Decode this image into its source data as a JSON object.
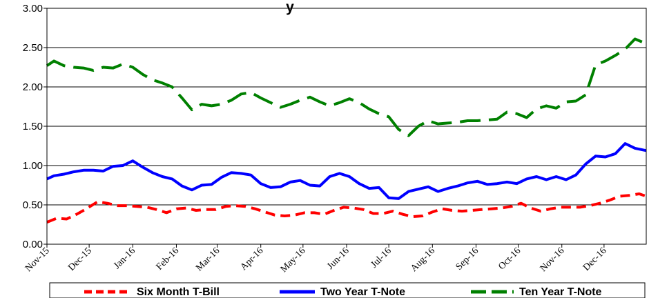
{
  "chart_data": {
    "type": "line",
    "title": "y",
    "ylim": [
      0,
      3
    ],
    "yticks": [
      "0.00",
      "0.50",
      "1.00",
      "1.50",
      "2.00",
      "2.50",
      "3.00"
    ],
    "xlim": [
      "2015-11-01",
      "2016-12-31"
    ],
    "xticks": [
      {
        "date": "2015-11-01",
        "label": "Nov-15"
      },
      {
        "date": "2015-12-01",
        "label": "Dec-15"
      },
      {
        "date": "2016-01-01",
        "label": "Jan-16"
      },
      {
        "date": "2016-02-01",
        "label": "Feb-16"
      },
      {
        "date": "2016-03-01",
        "label": "Mar-16"
      },
      {
        "date": "2016-04-01",
        "label": "Apr-16"
      },
      {
        "date": "2016-05-01",
        "label": "May-16"
      },
      {
        "date": "2016-06-01",
        "label": "Jun-16"
      },
      {
        "date": "2016-07-01",
        "label": "Jul-16"
      },
      {
        "date": "2016-08-01",
        "label": "Aug-16"
      },
      {
        "date": "2016-09-01",
        "label": "Sep-16"
      },
      {
        "date": "2016-10-01",
        "label": "Oct-16"
      },
      {
        "date": "2016-11-01",
        "label": "Nov-16"
      },
      {
        "date": "2016-12-01",
        "label": "Dec-16"
      }
    ],
    "grid": true,
    "legend_position": "bottom",
    "series": [
      {
        "name": "Six Month T-Bill",
        "color": "#ff0000",
        "style": "dashed",
        "points": [
          [
            "2015-11-01",
            0.28
          ],
          [
            "2015-11-08",
            0.33
          ],
          [
            "2015-11-15",
            0.32
          ],
          [
            "2015-11-22",
            0.38
          ],
          [
            "2015-11-29",
            0.45
          ],
          [
            "2015-12-07",
            0.54
          ],
          [
            "2015-12-14",
            0.52
          ],
          [
            "2015-12-21",
            0.49
          ],
          [
            "2015-12-28",
            0.49
          ],
          [
            "2016-01-04",
            0.48
          ],
          [
            "2016-01-11",
            0.47
          ],
          [
            "2016-01-18",
            0.44
          ],
          [
            "2016-01-25",
            0.4
          ],
          [
            "2016-02-01",
            0.45
          ],
          [
            "2016-02-08",
            0.46
          ],
          [
            "2016-02-15",
            0.43
          ],
          [
            "2016-02-22",
            0.44
          ],
          [
            "2016-02-29",
            0.44
          ],
          [
            "2016-03-07",
            0.48
          ],
          [
            "2016-03-14",
            0.49
          ],
          [
            "2016-03-21",
            0.48
          ],
          [
            "2016-03-28",
            0.45
          ],
          [
            "2016-04-04",
            0.41
          ],
          [
            "2016-04-11",
            0.37
          ],
          [
            "2016-04-18",
            0.36
          ],
          [
            "2016-04-25",
            0.37
          ],
          [
            "2016-05-02",
            0.4
          ],
          [
            "2016-05-09",
            0.4
          ],
          [
            "2016-05-16",
            0.38
          ],
          [
            "2016-05-23",
            0.43
          ],
          [
            "2016-05-30",
            0.47
          ],
          [
            "2016-06-06",
            0.46
          ],
          [
            "2016-06-13",
            0.44
          ],
          [
            "2016-06-20",
            0.39
          ],
          [
            "2016-06-27",
            0.39
          ],
          [
            "2016-07-04",
            0.42
          ],
          [
            "2016-07-11",
            0.38
          ],
          [
            "2016-07-18",
            0.35
          ],
          [
            "2016-07-25",
            0.36
          ],
          [
            "2016-08-01",
            0.41
          ],
          [
            "2016-08-08",
            0.45
          ],
          [
            "2016-08-15",
            0.43
          ],
          [
            "2016-08-22",
            0.42
          ],
          [
            "2016-08-29",
            0.43
          ],
          [
            "2016-09-05",
            0.44
          ],
          [
            "2016-09-12",
            0.45
          ],
          [
            "2016-09-19",
            0.46
          ],
          [
            "2016-09-26",
            0.48
          ],
          [
            "2016-10-03",
            0.52
          ],
          [
            "2016-10-10",
            0.46
          ],
          [
            "2016-10-17",
            0.42
          ],
          [
            "2016-10-24",
            0.45
          ],
          [
            "2016-10-31",
            0.47
          ],
          [
            "2016-11-07",
            0.47
          ],
          [
            "2016-11-14",
            0.47
          ],
          [
            "2016-11-21",
            0.49
          ],
          [
            "2016-11-28",
            0.52
          ],
          [
            "2016-12-05",
            0.56
          ],
          [
            "2016-12-12",
            0.61
          ],
          [
            "2016-12-19",
            0.62
          ],
          [
            "2016-12-26",
            0.64
          ],
          [
            "2016-12-31",
            0.61
          ]
        ]
      },
      {
        "name": "Two Year T-Note",
        "color": "#0000ff",
        "style": "solid",
        "points": [
          [
            "2015-11-01",
            0.83
          ],
          [
            "2015-11-06",
            0.87
          ],
          [
            "2015-11-13",
            0.89
          ],
          [
            "2015-11-20",
            0.92
          ],
          [
            "2015-11-27",
            0.94
          ],
          [
            "2015-12-04",
            0.94
          ],
          [
            "2015-12-11",
            0.93
          ],
          [
            "2015-12-18",
            0.99
          ],
          [
            "2015-12-25",
            1.0
          ],
          [
            "2016-01-01",
            1.06
          ],
          [
            "2016-01-08",
            0.98
          ],
          [
            "2016-01-15",
            0.91
          ],
          [
            "2016-01-22",
            0.86
          ],
          [
            "2016-01-29",
            0.83
          ],
          [
            "2016-02-05",
            0.74
          ],
          [
            "2016-02-12",
            0.69
          ],
          [
            "2016-02-19",
            0.75
          ],
          [
            "2016-02-26",
            0.76
          ],
          [
            "2016-03-04",
            0.85
          ],
          [
            "2016-03-11",
            0.91
          ],
          [
            "2016-03-18",
            0.9
          ],
          [
            "2016-03-25",
            0.88
          ],
          [
            "2016-04-01",
            0.77
          ],
          [
            "2016-04-08",
            0.72
          ],
          [
            "2016-04-15",
            0.73
          ],
          [
            "2016-04-22",
            0.79
          ],
          [
            "2016-04-29",
            0.81
          ],
          [
            "2016-05-06",
            0.75
          ],
          [
            "2016-05-13",
            0.74
          ],
          [
            "2016-05-20",
            0.86
          ],
          [
            "2016-05-27",
            0.9
          ],
          [
            "2016-06-03",
            0.86
          ],
          [
            "2016-06-10",
            0.77
          ],
          [
            "2016-06-17",
            0.71
          ],
          [
            "2016-06-24",
            0.72
          ],
          [
            "2016-07-01",
            0.59
          ],
          [
            "2016-07-08",
            0.58
          ],
          [
            "2016-07-15",
            0.67
          ],
          [
            "2016-07-22",
            0.7
          ],
          [
            "2016-07-29",
            0.73
          ],
          [
            "2016-08-05",
            0.67
          ],
          [
            "2016-08-12",
            0.71
          ],
          [
            "2016-08-19",
            0.74
          ],
          [
            "2016-08-26",
            0.78
          ],
          [
            "2016-09-02",
            0.8
          ],
          [
            "2016-09-09",
            0.76
          ],
          [
            "2016-09-16",
            0.77
          ],
          [
            "2016-09-23",
            0.79
          ],
          [
            "2016-09-30",
            0.77
          ],
          [
            "2016-10-07",
            0.83
          ],
          [
            "2016-10-14",
            0.86
          ],
          [
            "2016-10-21",
            0.82
          ],
          [
            "2016-10-28",
            0.86
          ],
          [
            "2016-11-04",
            0.82
          ],
          [
            "2016-11-11",
            0.88
          ],
          [
            "2016-11-18",
            1.02
          ],
          [
            "2016-11-25",
            1.12
          ],
          [
            "2016-12-02",
            1.11
          ],
          [
            "2016-12-09",
            1.15
          ],
          [
            "2016-12-16",
            1.28
          ],
          [
            "2016-12-23",
            1.22
          ],
          [
            "2016-12-31",
            1.19
          ]
        ]
      },
      {
        "name": "Ten Year T-Note",
        "color": "#008000",
        "style": "dashed",
        "points": [
          [
            "2015-11-01",
            2.27
          ],
          [
            "2015-11-06",
            2.33
          ],
          [
            "2015-11-13",
            2.27
          ],
          [
            "2015-11-20",
            2.25
          ],
          [
            "2015-11-27",
            2.24
          ],
          [
            "2015-12-04",
            2.21
          ],
          [
            "2015-12-11",
            2.25
          ],
          [
            "2015-12-18",
            2.24
          ],
          [
            "2015-12-25",
            2.29
          ],
          [
            "2016-01-01",
            2.25
          ],
          [
            "2016-01-08",
            2.16
          ],
          [
            "2016-01-15",
            2.09
          ],
          [
            "2016-01-22",
            2.05
          ],
          [
            "2016-01-29",
            2.0
          ],
          [
            "2016-02-05",
            1.86
          ],
          [
            "2016-02-12",
            1.71
          ],
          [
            "2016-02-19",
            1.78
          ],
          [
            "2016-02-26",
            1.76
          ],
          [
            "2016-03-04",
            1.78
          ],
          [
            "2016-03-11",
            1.83
          ],
          [
            "2016-03-18",
            1.91
          ],
          [
            "2016-03-25",
            1.93
          ],
          [
            "2016-04-01",
            1.86
          ],
          [
            "2016-04-08",
            1.8
          ],
          [
            "2016-04-15",
            1.74
          ],
          [
            "2016-04-22",
            1.78
          ],
          [
            "2016-04-29",
            1.83
          ],
          [
            "2016-05-06",
            1.87
          ],
          [
            "2016-05-13",
            1.81
          ],
          [
            "2016-05-20",
            1.76
          ],
          [
            "2016-05-27",
            1.8
          ],
          [
            "2016-06-03",
            1.85
          ],
          [
            "2016-06-10",
            1.8
          ],
          [
            "2016-06-17",
            1.72
          ],
          [
            "2016-06-24",
            1.66
          ],
          [
            "2016-07-01",
            1.62
          ],
          [
            "2016-07-08",
            1.46
          ],
          [
            "2016-07-15",
            1.38
          ],
          [
            "2016-07-22",
            1.5
          ],
          [
            "2016-07-29",
            1.57
          ],
          [
            "2016-08-05",
            1.53
          ],
          [
            "2016-08-12",
            1.54
          ],
          [
            "2016-08-19",
            1.55
          ],
          [
            "2016-08-26",
            1.57
          ],
          [
            "2016-09-02",
            1.57
          ],
          [
            "2016-09-09",
            1.58
          ],
          [
            "2016-09-16",
            1.59
          ],
          [
            "2016-09-23",
            1.68
          ],
          [
            "2016-09-30",
            1.66
          ],
          [
            "2016-10-07",
            1.61
          ],
          [
            "2016-10-14",
            1.72
          ],
          [
            "2016-10-21",
            1.76
          ],
          [
            "2016-10-28",
            1.73
          ],
          [
            "2016-11-04",
            1.81
          ],
          [
            "2016-11-11",
            1.82
          ],
          [
            "2016-11-18",
            1.9
          ],
          [
            "2016-11-25",
            2.28
          ],
          [
            "2016-12-02",
            2.33
          ],
          [
            "2016-12-09",
            2.4
          ],
          [
            "2016-12-16",
            2.48
          ],
          [
            "2016-12-23",
            2.61
          ],
          [
            "2016-12-31",
            2.55
          ]
        ]
      }
    ]
  }
}
